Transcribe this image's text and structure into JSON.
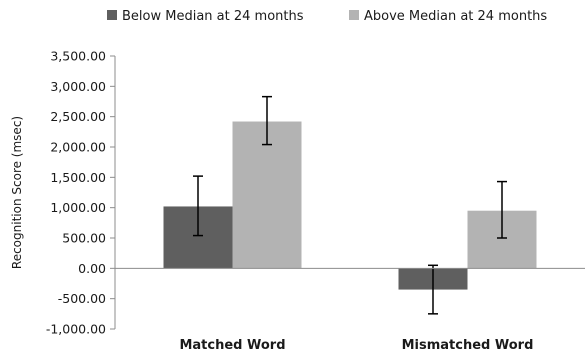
{
  "chart_data": {
    "type": "bar",
    "title": "",
    "xlabel": "",
    "ylabel": "Recognition Score (msec)",
    "ylim": [
      -1000,
      3500
    ],
    "ytick_step": 500,
    "ytick_labels": [
      "-1,000.00",
      "-500.00",
      "0.00",
      "500.00",
      "1,000.00",
      "1,500.00",
      "2,000.00",
      "2,500.00",
      "3,000.00",
      "3,500.00"
    ],
    "categories": [
      "Matched Word",
      "Mismatched Word"
    ],
    "series": [
      {
        "name": "Below Median at 24 months",
        "color": "#5f5f5f",
        "values": [
          1020,
          -350
        ],
        "error_low": [
          540,
          -750
        ],
        "error_high": [
          1520,
          50
        ]
      },
      {
        "name": "Above Median at 24 months",
        "color": "#b3b3b3",
        "values": [
          2420,
          950
        ],
        "error_low": [
          2040,
          500
        ],
        "error_high": [
          2830,
          1430
        ]
      }
    ],
    "legend_position": "top",
    "grid": false
  }
}
